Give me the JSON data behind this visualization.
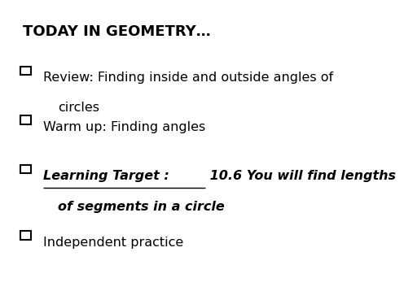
{
  "title": "TODAY IN GEOMETRY…",
  "bg_color": "#ffffff",
  "text_color": "#000000",
  "title_fontsize": 13,
  "bullet_fontsize": 11.5,
  "bullets": [
    {
      "lines": [
        "Review: Finding inside and outside angles of",
        "circles"
      ],
      "style": "normal"
    },
    {
      "lines": [
        "Warm up: Finding angles"
      ],
      "style": "normal"
    },
    {
      "lines": [
        "Learning Target : 10.6 You will find lengths",
        "of segments in a circle"
      ],
      "style": "bold_italic_underline",
      "underline_word": "Learning Target :"
    },
    {
      "lines": [
        "Independent practice"
      ],
      "style": "normal"
    }
  ]
}
